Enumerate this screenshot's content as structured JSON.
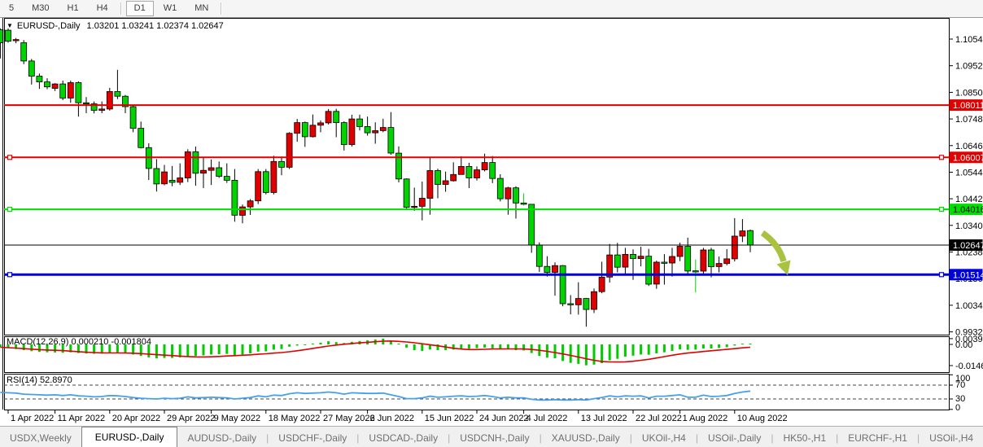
{
  "toolbar": {
    "timeframes": [
      "5",
      "M30",
      "H1",
      "H4",
      "D1",
      "W1",
      "MN"
    ],
    "active": "D1",
    "separators_after": [
      "H4",
      "MN"
    ]
  },
  "chart_data": {
    "type": "candlestick-with-indicators",
    "title_symbol": "EURUSD-,Daily",
    "title_ohlc": "1.03201 1.03241 1.02374 1.02647",
    "last_candle": {
      "open": 1.03201,
      "high": 1.03241,
      "low": 1.02374,
      "close": 1.02647
    },
    "colors": {
      "bull_body": "#e00000",
      "bear_body": "#00d300",
      "wick": "#000000",
      "macd_hist": "#00cc00",
      "macd_signal": "#e00000",
      "rsi_line": "#46a0ed",
      "arrow": "#a9c23f"
    },
    "price_ticks": [
      "1.10540",
      "1.09520",
      "1.08500",
      "1.07480",
      "1.06460",
      "1.05440",
      "1.04420",
      "1.03400",
      "1.02380",
      "1.01360",
      "1.00340",
      "0.99320"
    ],
    "hlines": [
      {
        "price": 1.08011,
        "label": "1.08011",
        "color": "#e00000",
        "width": 2,
        "badge_bg": "#e00000",
        "badge_fg": "#ffffff",
        "handles": false
      },
      {
        "price": 1.06007,
        "label": "1.06007",
        "color": "#e00000",
        "width": 2,
        "badge_bg": "#e00000",
        "badge_fg": "#ffffff",
        "handles": true
      },
      {
        "price": 1.04016,
        "label": "1.04016",
        "color": "#00e000",
        "width": 2,
        "badge_bg": "#00e000",
        "badge_fg": "#000000",
        "handles": true
      },
      {
        "price": 1.02647,
        "label": "1.02647",
        "color": "#000000",
        "width": 1,
        "badge_bg": "#000000",
        "badge_fg": "#ffffff",
        "handles": false
      },
      {
        "price": 1.01514,
        "label": "1.01514",
        "color": "#0000d8",
        "width": 3,
        "badge_bg": "#0000d8",
        "badge_fg": "#ffffff",
        "handles": true
      }
    ],
    "dates": [
      {
        "label": "1 Apr 2022",
        "i": 1
      },
      {
        "label": "11 Apr 2022",
        "i": 7
      },
      {
        "label": "20 Apr 2022",
        "i": 14
      },
      {
        "label": "29 Apr 2022",
        "i": 21
      },
      {
        "label": "9 May 2022",
        "i": 27
      },
      {
        "label": "18 May 2022",
        "i": 34
      },
      {
        "label": "27 May 2022",
        "i": 41
      },
      {
        "label": "6 Jun 2022",
        "i": 47
      },
      {
        "label": "15 Jun 2022",
        "i": 54
      },
      {
        "label": "24 Jun 2022",
        "i": 61
      },
      {
        "label": "4 Jul 2022",
        "i": 67
      },
      {
        "label": "13 Jul 2022",
        "i": 74
      },
      {
        "label": "22 Jul 2022",
        "i": 81
      },
      {
        "label": "1 Aug 2022",
        "i": 87
      },
      {
        "label": "10 Aug 2022",
        "i": 94
      }
    ],
    "wick_green_indices": [
      67,
      89
    ],
    "candles": [
      [
        1.109,
        1.1095,
        1.098,
        1.104
      ],
      [
        1.1088,
        1.1095,
        1.104,
        1.1046
      ],
      [
        1.1048,
        1.1058,
        1.1038,
        1.1052
      ],
      [
        1.104,
        1.105,
        1.0958,
        1.097
      ],
      [
        1.097,
        1.0978,
        1.088,
        1.0912
      ],
      [
        1.0912,
        1.0922,
        1.0863,
        1.089
      ],
      [
        1.089,
        1.0904,
        1.0862,
        1.0871
      ],
      [
        1.0865,
        1.0885,
        1.0855,
        1.0882
      ],
      [
        1.0882,
        1.0895,
        1.082,
        1.0828
      ],
      [
        1.0828,
        1.0895,
        1.081,
        1.0887
      ],
      [
        1.0887,
        1.0892,
        1.0757,
        1.081
      ],
      [
        1.081,
        1.0832,
        1.077,
        1.0806
      ],
      [
        1.0806,
        1.0815,
        1.0769,
        1.0781
      ],
      [
        1.0781,
        1.0815,
        1.077,
        1.0786
      ],
      [
        1.0786,
        1.0867,
        1.078,
        1.0853
      ],
      [
        1.0853,
        1.0936,
        1.0824,
        1.0835
      ],
      [
        1.0835,
        1.084,
        1.077,
        1.0795
      ],
      [
        1.0795,
        1.08,
        1.0697,
        1.0712
      ],
      [
        1.0712,
        1.0738,
        1.0635,
        1.0638
      ],
      [
        1.0638,
        1.0655,
        1.0514,
        1.0558
      ],
      [
        1.0558,
        1.0594,
        1.047,
        1.0499
      ],
      [
        1.0499,
        1.0572,
        1.0494,
        1.0545
      ],
      [
        1.0513,
        1.0568,
        1.049,
        1.0505
      ],
      [
        1.0505,
        1.0578,
        1.0495,
        1.0522
      ],
      [
        1.0522,
        1.0632,
        1.0506,
        1.0622
      ],
      [
        1.0622,
        1.0642,
        1.0492,
        1.054
      ],
      [
        1.054,
        1.0599,
        1.0483,
        1.0551
      ],
      [
        1.0551,
        1.0593,
        1.0495,
        1.0561
      ],
      [
        1.0561,
        1.0585,
        1.0522,
        1.0528
      ],
      [
        1.0528,
        1.0578,
        1.0503,
        1.0513
      ],
      [
        1.0513,
        1.0556,
        1.0354,
        1.0379
      ],
      [
        1.0379,
        1.042,
        1.0348,
        1.0411
      ],
      [
        1.0411,
        1.0441,
        1.038,
        1.0434
      ],
      [
        1.0434,
        1.0556,
        1.0422,
        1.0546
      ],
      [
        1.0546,
        1.0556,
        1.0459,
        1.0466
      ],
      [
        1.0466,
        1.0607,
        1.0459,
        1.0585
      ],
      [
        1.0585,
        1.0604,
        1.0532,
        1.0563
      ],
      [
        1.0563,
        1.0697,
        1.0556,
        1.0693
      ],
      [
        1.0693,
        1.0748,
        1.0661,
        1.0734
      ],
      [
        1.0734,
        1.0738,
        1.0641,
        1.068
      ],
      [
        1.068,
        1.0765,
        1.0677,
        1.0724
      ],
      [
        1.0724,
        1.0742,
        1.0697,
        1.0733
      ],
      [
        1.0733,
        1.0786,
        1.0727,
        1.0777
      ],
      [
        1.0777,
        1.0787,
        1.0678,
        1.0734
      ],
      [
        1.0734,
        1.0739,
        1.0627,
        1.065
      ],
      [
        1.065,
        1.0764,
        1.0642,
        1.0748
      ],
      [
        1.0748,
        1.0764,
        1.0704,
        1.0719
      ],
      [
        1.0719,
        1.0757,
        1.0684,
        1.0695
      ],
      [
        1.0695,
        1.0735,
        1.0653,
        1.0703
      ],
      [
        1.0703,
        1.0749,
        1.0697,
        1.0715
      ],
      [
        1.0715,
        1.0774,
        1.0611,
        1.0617
      ],
      [
        1.0617,
        1.0643,
        1.0505,
        1.0518
      ],
      [
        1.0518,
        1.052,
        1.0399,
        1.0409
      ],
      [
        1.0409,
        1.0485,
        1.0396,
        1.0413
      ],
      [
        1.0413,
        1.0508,
        1.0359,
        1.0444
      ],
      [
        1.0444,
        1.0601,
        1.0381,
        1.055
      ],
      [
        1.055,
        1.0557,
        1.0444,
        1.0497
      ],
      [
        1.0497,
        1.0546,
        1.0469,
        1.0511
      ],
      [
        1.0511,
        1.0582,
        1.0508,
        1.0535
      ],
      [
        1.0535,
        1.0605,
        1.0535,
        1.0566
      ],
      [
        1.0566,
        1.058,
        1.0483,
        1.0522
      ],
      [
        1.0522,
        1.0566,
        1.0512,
        1.0553
      ],
      [
        1.0553,
        1.0615,
        1.0547,
        1.0581
      ],
      [
        1.0581,
        1.0606,
        1.0502,
        1.052
      ],
      [
        1.052,
        1.0536,
        1.0432,
        1.0442
      ],
      [
        1.0442,
        1.0488,
        1.0381,
        1.0484
      ],
      [
        1.0484,
        1.049,
        1.0366,
        1.0426
      ],
      [
        1.0426,
        1.0463,
        1.0416,
        1.0421
      ],
      [
        1.0421,
        1.0422,
        1.0235,
        1.0265
      ],
      [
        1.0265,
        1.0275,
        1.0162,
        1.0183
      ],
      [
        1.0183,
        1.0222,
        1.0144,
        1.016
      ],
      [
        1.016,
        1.0198,
        1.0071,
        1.0186
      ],
      [
        1.0186,
        1.0188,
        1.003,
        1.004
      ],
      [
        1.004,
        1.0073,
        0.9999,
        1.0036
      ],
      [
        1.0036,
        1.0122,
        0.9998,
        1.006
      ],
      [
        1.006,
        1.0062,
        0.9952,
        1.0018
      ],
      [
        1.0018,
        1.0098,
        1.0004,
        1.0086
      ],
      [
        1.0086,
        1.0201,
        1.008,
        1.0142
      ],
      [
        1.0142,
        1.0269,
        1.0121,
        1.0227
      ],
      [
        1.0227,
        1.0273,
        1.016,
        1.018
      ],
      [
        1.018,
        1.0254,
        1.0151,
        1.0229
      ],
      [
        1.0229,
        1.0248,
        1.0131,
        1.0213
      ],
      [
        1.0213,
        1.0258,
        1.0183,
        1.0222
      ],
      [
        1.0222,
        1.025,
        1.0108,
        1.0115
      ],
      [
        1.0115,
        1.0205,
        1.0097,
        1.0199
      ],
      [
        1.0199,
        1.023,
        1.0113,
        1.0196
      ],
      [
        1.0196,
        1.0254,
        1.0144,
        1.0221
      ],
      [
        1.0221,
        1.0274,
        1.0203,
        1.026
      ],
      [
        1.026,
        1.0293,
        1.0155,
        1.0165
      ],
      [
        1.0166,
        1.0209,
        1.0083,
        1.0165
      ],
      [
        1.0165,
        1.0254,
        1.0152,
        1.0246
      ],
      [
        1.0246,
        1.0254,
        1.0141,
        1.0182
      ],
      [
        1.0182,
        1.0221,
        1.016,
        1.0194
      ],
      [
        1.0194,
        1.0249,
        1.0187,
        1.0212
      ],
      [
        1.0212,
        1.0368,
        1.0202,
        1.0299
      ],
      [
        1.0299,
        1.0364,
        1.0276,
        1.0319
      ],
      [
        1.03201,
        1.03241,
        1.02374,
        1.02647
      ]
    ],
    "macd": {
      "label": "MACD(12,26,9)",
      "main_text": "0.000210",
      "signal_text": "-0.001804",
      "axis_labels": [
        "0.00399",
        "0.00",
        "-0.01469"
      ],
      "axis_max": 0.00399,
      "axis_min": -0.01469,
      "hist": [
        -0.002,
        -0.0025,
        -0.0032,
        -0.004,
        -0.0047,
        -0.0052,
        -0.0055,
        -0.0056,
        -0.0058,
        -0.0055,
        -0.006,
        -0.0063,
        -0.0065,
        -0.0064,
        -0.0058,
        -0.0056,
        -0.006,
        -0.007,
        -0.008,
        -0.009,
        -0.0097,
        -0.0094,
        -0.0094,
        -0.009,
        -0.0082,
        -0.008,
        -0.0076,
        -0.007,
        -0.0068,
        -0.0066,
        -0.0075,
        -0.007,
        -0.0062,
        -0.005,
        -0.0048,
        -0.0037,
        -0.0032,
        -0.0016,
        -0.0008,
        -0.0002,
        0.0006,
        0.0012,
        0.0022,
        0.0016,
        0.001,
        0.0018,
        0.0024,
        0.0028,
        0.0034,
        0.004,
        0.002,
        0.0,
        -0.0022,
        -0.004,
        -0.0045,
        -0.0035,
        -0.004,
        -0.004,
        -0.0036,
        -0.003,
        -0.003,
        -0.0026,
        -0.0022,
        -0.0026,
        -0.0035,
        -0.0035,
        -0.004,
        -0.0042,
        -0.006,
        -0.008,
        -0.0092,
        -0.0096,
        -0.0115,
        -0.0128,
        -0.0135,
        -0.0145,
        -0.014,
        -0.013,
        -0.011,
        -0.01,
        -0.0085,
        -0.0078,
        -0.007,
        -0.0072,
        -0.0062,
        -0.0055,
        -0.0045,
        -0.0035,
        -0.0038,
        -0.0036,
        -0.0028,
        -0.0028,
        -0.0025,
        -0.002,
        -0.0008,
        0.0004,
        0.00021
      ]
    },
    "rsi": {
      "label": "RSI(14)",
      "value_text": "52.8970",
      "levels": [
        70,
        30
      ],
      "axis_labels": [
        "100",
        "70",
        "30",
        "0"
      ],
      "series": [
        49,
        48,
        47,
        44,
        43,
        42,
        41,
        42,
        40,
        42,
        39,
        38,
        36,
        37,
        40,
        39,
        37,
        34,
        32,
        31,
        30,
        32,
        31,
        32,
        36,
        33,
        34,
        35,
        34,
        33,
        30,
        32,
        34,
        39,
        36,
        41,
        40,
        45,
        48,
        46,
        47,
        48,
        50,
        48,
        44,
        48,
        47,
        46,
        46,
        47,
        42,
        37,
        31,
        31,
        33,
        38,
        35,
        36,
        38,
        39,
        37,
        38,
        40,
        37,
        33,
        35,
        33,
        33,
        29,
        27,
        27,
        28,
        27,
        27,
        28,
        27,
        31,
        34,
        39,
        36,
        39,
        38,
        39,
        33,
        38,
        38,
        40,
        42,
        35,
        35,
        41,
        37,
        38,
        40,
        46,
        50,
        52.897
      ]
    },
    "arrow_annotation": {
      "description": "down-right arrow",
      "color": "#a9c23f"
    }
  },
  "tabs": {
    "items": [
      "USDX,Weekly",
      "EURUSD-,Daily",
      "AUDUSD-,Daily",
      "USDCHF-,Daily",
      "USDCAD-,Daily",
      "USDCNH-,Daily",
      "XAUUSD-,Daily",
      "UKOil-,H4",
      "USOil-,Daily",
      "HK50-,H1",
      "EURCHF-,H1",
      "USOil-,H4"
    ],
    "active_index": 1,
    "scroll_left_icon": "◄",
    "scroll_right_icon": "►"
  }
}
